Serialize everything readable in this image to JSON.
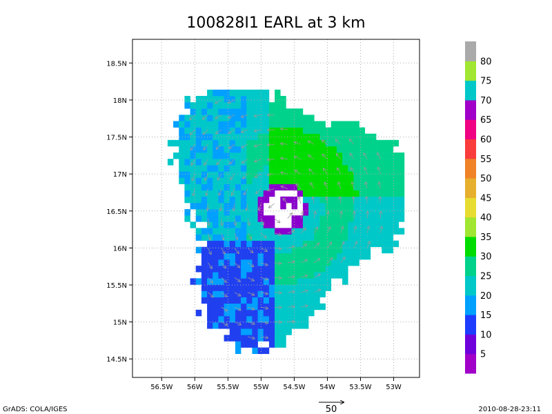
{
  "chart_data": {
    "type": "heatmap",
    "title": "100828I1 EARL at 3 km",
    "xlabel": "",
    "ylabel": "",
    "x_ticks": [
      "56.5W",
      "56W",
      "55.5W",
      "55W",
      "54.5W",
      "54W",
      "53.5W",
      "53W"
    ],
    "x_tick_values": [
      -56.5,
      -56.0,
      -55.5,
      -55.0,
      -54.5,
      -54.0,
      -53.5,
      -53.0
    ],
    "y_ticks": [
      "14.5N",
      "15N",
      "15.5N",
      "16N",
      "16.5N",
      "17N",
      "17.5N",
      "18N",
      "18.5N"
    ],
    "y_tick_values": [
      14.5,
      15.0,
      15.5,
      16.0,
      16.5,
      17.0,
      17.5,
      18.0,
      18.5
    ],
    "xlim": [
      -56.94,
      -52.61
    ],
    "ylim": [
      14.25,
      18.82
    ],
    "grid": true,
    "colorbar_levels": [
      5,
      10,
      15,
      20,
      25,
      30,
      35,
      40,
      45,
      50,
      55,
      60,
      65,
      70,
      75,
      80
    ],
    "colorbar_labels": [
      "5",
      "10",
      "15",
      "20",
      "25",
      "30",
      "35",
      "40",
      "45",
      "50",
      "55",
      "60",
      "65",
      "70",
      "75",
      "80"
    ],
    "colorbar_colors": [
      "#a000c8",
      "#6e00dc",
      "#1e3cff",
      "#00a0ff",
      "#00c8c8",
      "#00d28c",
      "#00dc00",
      "#a0e632",
      "#e6dc32",
      "#e6af2d",
      "#f08228",
      "#fa3c3c",
      "#f00082",
      "#a000c8",
      "#00c8c8",
      "#a0e632",
      "#aaaaaa"
    ],
    "wind_reference_vector": "50",
    "storm_center": {
      "lon": -54.72,
      "lat": 16.5
    }
  },
  "footer": {
    "left": "GrADS: COLA/IGES",
    "right": "2010-08-28-23:11",
    "vector_label": "50"
  }
}
